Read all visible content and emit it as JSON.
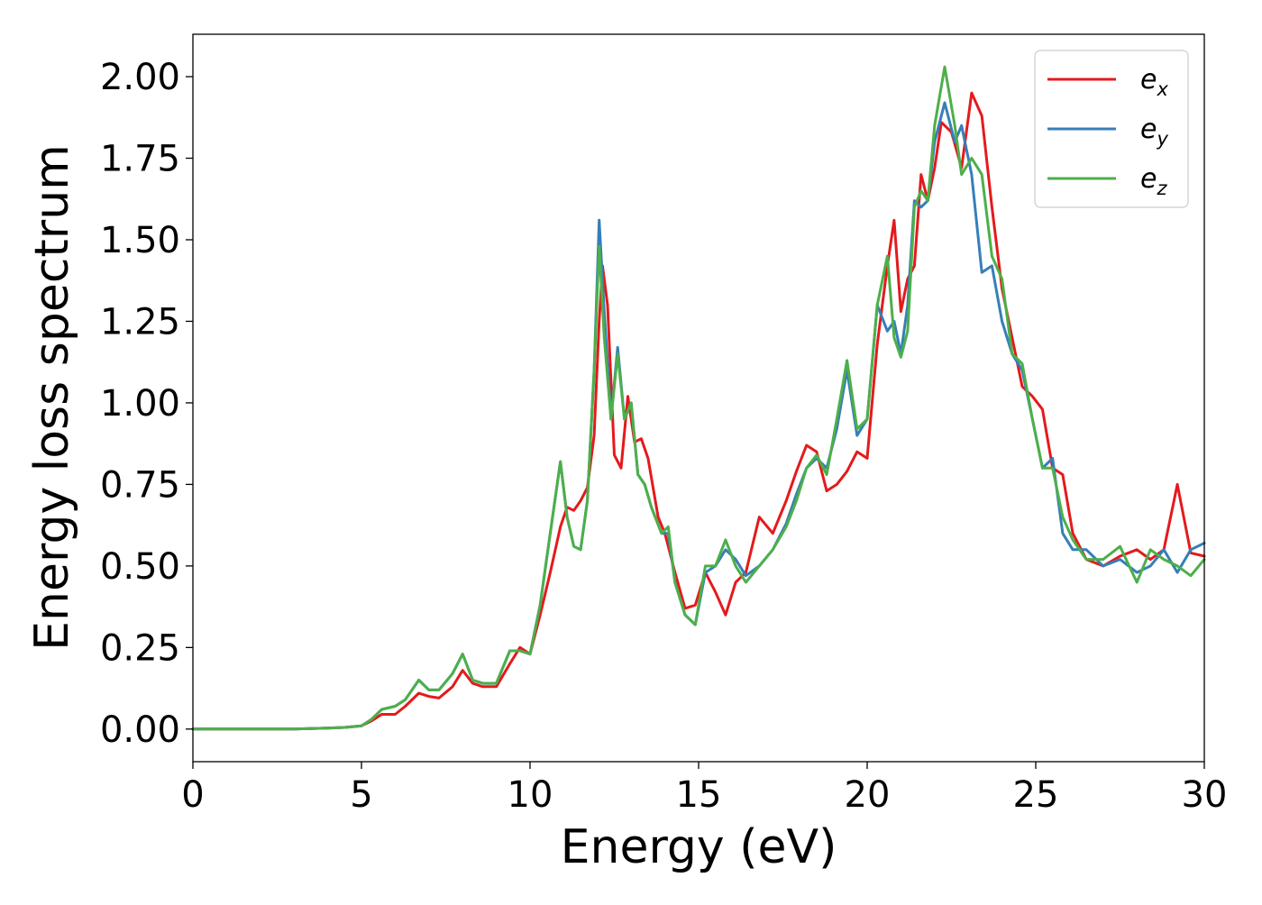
{
  "chart_data": {
    "type": "line",
    "title": "",
    "xlabel": "Energy (eV)",
    "ylabel": "Energy loss spectrum",
    "xlim": [
      0,
      30
    ],
    "ylim": [
      -0.1,
      2.13
    ],
    "xticks": [
      "0",
      "5",
      "10",
      "15",
      "20",
      "25",
      "30"
    ],
    "yticks": [
      "0.00",
      "0.25",
      "0.50",
      "0.75",
      "1.00",
      "1.25",
      "1.50",
      "1.75",
      "2.00"
    ],
    "grid": false,
    "legend_position": "top-right",
    "colors": {
      "ex": "#e41a1c",
      "ey": "#377eb8",
      "ez": "#4daf4a"
    },
    "legend": [
      {
        "base": "e",
        "sub": "x"
      },
      {
        "base": "e",
        "sub": "y"
      },
      {
        "base": "e",
        "sub": "z"
      }
    ],
    "series": [
      {
        "name": "e_x",
        "x": [
          0,
          1,
          2,
          3,
          4,
          4.5,
          5,
          5.3,
          5.6,
          6,
          6.3,
          6.7,
          7,
          7.3,
          7.7,
          8,
          8.3,
          8.6,
          9,
          9.4,
          9.7,
          10,
          10.3,
          10.6,
          10.9,
          11.1,
          11.3,
          11.5,
          11.7,
          11.9,
          12.05,
          12.15,
          12.3,
          12.5,
          12.7,
          12.9,
          13.1,
          13.3,
          13.5,
          13.8,
          14,
          14.3,
          14.6,
          14.9,
          15.2,
          15.5,
          15.8,
          16.1,
          16.4,
          16.8,
          17.2,
          17.6,
          17.9,
          18.2,
          18.5,
          18.8,
          19.1,
          19.4,
          19.7,
          20,
          20.3,
          20.6,
          20.8,
          21.0,
          21.2,
          21.4,
          21.6,
          21.8,
          22,
          22.2,
          22.5,
          22.8,
          23.1,
          23.4,
          23.7,
          24,
          24.3,
          24.6,
          24.9,
          25.2,
          25.5,
          25.8,
          26.1,
          26.5,
          27,
          27.5,
          28,
          28.4,
          28.8,
          29.2,
          29.6,
          30
        ],
        "y": [
          0,
          0,
          0,
          0,
          0.003,
          0.005,
          0.01,
          0.025,
          0.045,
          0.045,
          0.07,
          0.11,
          0.1,
          0.095,
          0.13,
          0.18,
          0.14,
          0.13,
          0.13,
          0.2,
          0.25,
          0.23,
          0.35,
          0.48,
          0.62,
          0.68,
          0.67,
          0.7,
          0.74,
          0.9,
          1.25,
          1.42,
          1.3,
          0.84,
          0.8,
          1.02,
          0.88,
          0.89,
          0.83,
          0.65,
          0.6,
          0.48,
          0.37,
          0.38,
          0.48,
          0.42,
          0.35,
          0.45,
          0.48,
          0.65,
          0.6,
          0.7,
          0.79,
          0.87,
          0.85,
          0.73,
          0.75,
          0.79,
          0.85,
          0.83,
          1.18,
          1.42,
          1.56,
          1.28,
          1.38,
          1.42,
          1.7,
          1.62,
          1.72,
          1.86,
          1.83,
          1.72,
          1.95,
          1.88,
          1.6,
          1.35,
          1.2,
          1.05,
          1.02,
          0.98,
          0.8,
          0.78,
          0.6,
          0.52,
          0.5,
          0.53,
          0.55,
          0.52,
          0.55,
          0.75,
          0.54,
          0.53
        ]
      },
      {
        "name": "e_y",
        "x": [
          0,
          1,
          2,
          3,
          4,
          4.5,
          5,
          5.3,
          5.6,
          6,
          6.3,
          6.7,
          7,
          7.3,
          7.7,
          8,
          8.3,
          8.6,
          9,
          9.4,
          9.7,
          10,
          10.3,
          10.6,
          10.9,
          11.1,
          11.3,
          11.5,
          11.7,
          11.9,
          12.05,
          12.2,
          12.4,
          12.6,
          12.8,
          13,
          13.2,
          13.4,
          13.6,
          13.9,
          14.1,
          14.3,
          14.6,
          14.9,
          15.2,
          15.5,
          15.8,
          16.1,
          16.4,
          16.8,
          17.2,
          17.6,
          17.9,
          18.2,
          18.5,
          18.8,
          19.1,
          19.4,
          19.7,
          20,
          20.3,
          20.6,
          20.8,
          21.0,
          21.2,
          21.4,
          21.6,
          21.8,
          22,
          22.3,
          22.6,
          22.8,
          23.1,
          23.4,
          23.7,
          24,
          24.3,
          24.6,
          24.9,
          25.2,
          25.5,
          25.8,
          26.1,
          26.5,
          27,
          27.5,
          28,
          28.4,
          28.8,
          29.2,
          29.6,
          30
        ],
        "y": [
          0,
          0,
          0,
          0,
          0.003,
          0.005,
          0.01,
          0.03,
          0.06,
          0.07,
          0.09,
          0.15,
          0.12,
          0.12,
          0.17,
          0.23,
          0.15,
          0.14,
          0.14,
          0.24,
          0.24,
          0.23,
          0.38,
          0.6,
          0.82,
          0.65,
          0.56,
          0.55,
          0.7,
          1.1,
          1.56,
          1.28,
          0.95,
          1.17,
          0.95,
          1.0,
          0.78,
          0.75,
          0.68,
          0.6,
          0.6,
          0.45,
          0.35,
          0.32,
          0.48,
          0.5,
          0.55,
          0.52,
          0.47,
          0.5,
          0.55,
          0.63,
          0.72,
          0.8,
          0.83,
          0.8,
          0.92,
          1.1,
          0.9,
          0.95,
          1.3,
          1.22,
          1.25,
          1.15,
          1.3,
          1.62,
          1.6,
          1.62,
          1.8,
          1.92,
          1.8,
          1.85,
          1.7,
          1.4,
          1.42,
          1.25,
          1.15,
          1.1,
          0.95,
          0.8,
          0.83,
          0.6,
          0.55,
          0.55,
          0.5,
          0.52,
          0.48,
          0.5,
          0.55,
          0.48,
          0.55,
          0.57
        ]
      },
      {
        "name": "e_z",
        "x": [
          0,
          1,
          2,
          3,
          4,
          4.5,
          5,
          5.3,
          5.6,
          6,
          6.3,
          6.7,
          7,
          7.3,
          7.7,
          8,
          8.3,
          8.6,
          9,
          9.4,
          9.7,
          10,
          10.3,
          10.6,
          10.9,
          11.1,
          11.3,
          11.5,
          11.7,
          11.9,
          12.05,
          12.2,
          12.4,
          12.6,
          12.8,
          13,
          13.2,
          13.4,
          13.6,
          13.9,
          14.1,
          14.3,
          14.6,
          14.9,
          15.2,
          15.5,
          15.8,
          16.1,
          16.4,
          16.8,
          17.2,
          17.6,
          17.9,
          18.2,
          18.5,
          18.8,
          19.1,
          19.4,
          19.7,
          20,
          20.3,
          20.6,
          20.8,
          21.0,
          21.2,
          21.4,
          21.6,
          21.8,
          22,
          22.3,
          22.6,
          22.8,
          23.1,
          23.4,
          23.7,
          24,
          24.3,
          24.6,
          24.9,
          25.2,
          25.5,
          25.8,
          26.1,
          26.5,
          27,
          27.5,
          28,
          28.4,
          28.8,
          29.2,
          29.6,
          30
        ],
        "y": [
          0,
          0,
          0,
          0,
          0.003,
          0.005,
          0.01,
          0.03,
          0.06,
          0.07,
          0.09,
          0.15,
          0.12,
          0.12,
          0.17,
          0.23,
          0.15,
          0.14,
          0.14,
          0.24,
          0.24,
          0.23,
          0.38,
          0.6,
          0.82,
          0.65,
          0.56,
          0.55,
          0.7,
          1.1,
          1.48,
          1.2,
          0.95,
          1.15,
          0.95,
          1.0,
          0.78,
          0.75,
          0.68,
          0.6,
          0.62,
          0.45,
          0.35,
          0.32,
          0.5,
          0.5,
          0.58,
          0.5,
          0.45,
          0.5,
          0.55,
          0.62,
          0.7,
          0.8,
          0.84,
          0.78,
          0.95,
          1.13,
          0.92,
          0.95,
          1.3,
          1.45,
          1.2,
          1.14,
          1.22,
          1.6,
          1.65,
          1.62,
          1.85,
          2.03,
          1.85,
          1.7,
          1.75,
          1.7,
          1.45,
          1.38,
          1.15,
          1.12,
          0.95,
          0.8,
          0.8,
          0.65,
          0.58,
          0.52,
          0.52,
          0.56,
          0.45,
          0.55,
          0.52,
          0.5,
          0.47,
          0.52
        ]
      }
    ]
  }
}
